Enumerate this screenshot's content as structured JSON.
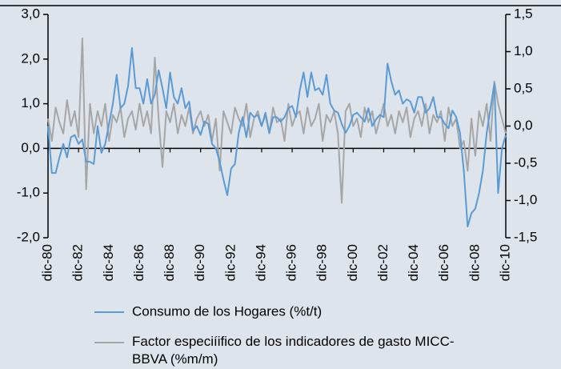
{
  "chart_data": {
    "type": "line",
    "categories": [
      "dic-80",
      null,
      null,
      null,
      null,
      null,
      null,
      null,
      "dic-82",
      null,
      null,
      null,
      null,
      null,
      null,
      null,
      "dic-84",
      null,
      null,
      null,
      null,
      null,
      null,
      null,
      "dic-86",
      null,
      null,
      null,
      null,
      null,
      null,
      null,
      "dic-88",
      null,
      null,
      null,
      null,
      null,
      null,
      null,
      "dic-90",
      null,
      null,
      null,
      null,
      null,
      null,
      null,
      "dic-92",
      null,
      null,
      null,
      null,
      null,
      null,
      null,
      "dic-94",
      null,
      null,
      null,
      null,
      null,
      null,
      null,
      "dic-96",
      null,
      null,
      null,
      null,
      null,
      null,
      null,
      "dic-98",
      null,
      null,
      null,
      null,
      null,
      null,
      null,
      "dic-00",
      null,
      null,
      null,
      null,
      null,
      null,
      null,
      "dic-02",
      null,
      null,
      null,
      null,
      null,
      null,
      null,
      "dic-04",
      null,
      null,
      null,
      null,
      null,
      null,
      null,
      "dic-06",
      null,
      null,
      null,
      null,
      null,
      null,
      null,
      "dic-08",
      null,
      null,
      null,
      null,
      null,
      null,
      null,
      "dic-10"
    ],
    "series": [
      {
        "name": "Consumo de los Hogares (%t/t)",
        "color": "#5b9bd5",
        "axis": "y",
        "values": [
          0.5,
          -0.55,
          -0.55,
          -0.2,
          0.1,
          -0.2,
          0.25,
          0.3,
          0.1,
          0.2,
          -0.3,
          -0.3,
          -0.35,
          0.5,
          -0.1,
          0.1,
          0.55,
          1.0,
          1.65,
          0.9,
          1.0,
          1.4,
          2.25,
          1.35,
          1.35,
          1.0,
          1.55,
          1.0,
          1.2,
          1.75,
          1.35,
          0.9,
          1.7,
          1.15,
          1.0,
          1.35,
          0.9,
          1.05,
          0.4,
          0.5,
          0.3,
          0.6,
          0.55,
          0.1,
          0.0,
          -0.3,
          -0.7,
          -1.05,
          -0.45,
          -0.35,
          0.35,
          0.7,
          0.25,
          0.8,
          0.7,
          0.75,
          0.5,
          0.8,
          0.35,
          0.7,
          0.7,
          0.6,
          0.7,
          0.9,
          0.95,
          0.7,
          1.3,
          1.7,
          1.15,
          1.7,
          1.3,
          1.35,
          1.2,
          1.65,
          1.0,
          0.85,
          0.8,
          0.55,
          0.35,
          0.5,
          0.75,
          0.8,
          0.7,
          0.6,
          0.9,
          0.5,
          0.65,
          0.75,
          0.7,
          1.9,
          1.5,
          1.2,
          1.3,
          1.0,
          1.1,
          1.05,
          0.8,
          1.15,
          1.15,
          0.8,
          0.9,
          1.15,
          0.7,
          0.7,
          0.55,
          0.45,
          0.85,
          0.7,
          0.35,
          -0.5,
          -1.75,
          -1.45,
          -1.35,
          -1.0,
          -0.5,
          0.35,
          0.9,
          1.45,
          -1.0,
          0.0,
          0.3
        ]
      },
      {
        "name": "Factor especiíifico de los indicadores de gasto MICC-BBVA (%m/m)",
        "color": "#a6a6a6",
        "axis": "y2",
        "values": [
          0.1,
          -0.2,
          0.25,
          0.05,
          -0.1,
          0.35,
          0.0,
          0.2,
          -0.15,
          1.18,
          -0.85,
          0.3,
          -0.1,
          0.2,
          0.0,
          0.3,
          -0.2,
          0.15,
          0.05,
          0.25,
          -0.15,
          0.1,
          0.2,
          -0.05,
          0.3,
          0.0,
          0.2,
          -0.1,
          0.92,
          0.1,
          -0.55,
          0.2,
          0.05,
          0.3,
          -0.1,
          0.15,
          0.0,
          0.25,
          -0.1,
          0.1,
          0.2,
          0.0,
          0.15,
          -0.2,
          0.1,
          -0.6,
          0.2,
          0.05,
          -0.1,
          0.25,
          0.1,
          0.0,
          0.3,
          -0.15,
          0.1,
          0.2,
          0.0,
          0.15,
          -0.1,
          0.25,
          0.05,
          0.1,
          -0.2,
          0.3,
          0.0,
          0.15,
          0.2,
          -0.1,
          0.25,
          0.0,
          0.1,
          0.3,
          -0.2,
          0.15,
          0.05,
          0.2,
          -0.1,
          -1.03,
          0.2,
          0.3,
          0.0,
          0.1,
          -0.15,
          0.25,
          0.05,
          0.2,
          -0.1,
          0.1,
          0.3,
          0.0,
          0.15,
          -0.1,
          0.2,
          0.05,
          0.25,
          -0.15,
          0.1,
          0.2,
          0.0,
          0.3,
          -0.1,
          0.15,
          0.05,
          0.2,
          -0.2,
          0.25,
          0.0,
          0.1,
          -0.3,
          -0.2,
          -0.6,
          0.1,
          -0.4,
          0.2,
          0.0,
          0.3,
          -0.2,
          0.6,
          0.3,
          0.1,
          -0.1
        ]
      }
    ],
    "ylim": [
      -2,
      3
    ],
    "yticks": [
      {
        "value": -2,
        "label": "-2,0"
      },
      {
        "value": -1,
        "label": "-1,0"
      },
      {
        "value": 0,
        "label": "0,0"
      },
      {
        "value": 1,
        "label": "1,0"
      },
      {
        "value": 2,
        "label": "2,0"
      },
      {
        "value": 3,
        "label": "3,0"
      }
    ],
    "y2lim": [
      -1.5,
      1.5
    ],
    "y2ticks": [
      {
        "value": -1.5,
        "label": "-1,5"
      },
      {
        "value": -1,
        "label": "-1,0"
      },
      {
        "value": -0.5,
        "label": "-0,5"
      },
      {
        "value": 0,
        "label": "0,0"
      },
      {
        "value": 0.5,
        "label": "0,5"
      },
      {
        "value": 1,
        "label": "1,0"
      },
      {
        "value": 1.5,
        "label": "1,5"
      }
    ]
  }
}
